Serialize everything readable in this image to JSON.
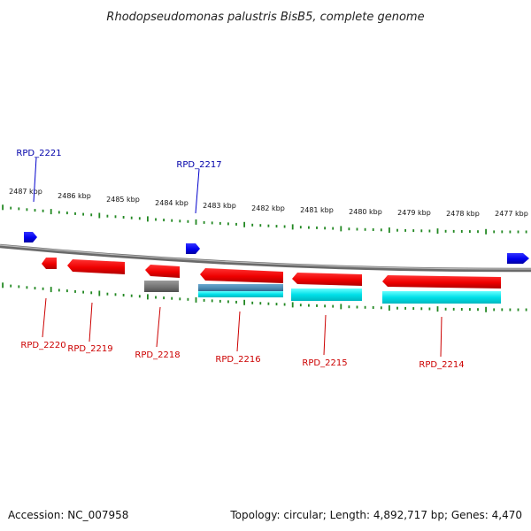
{
  "title": "Rhodopseudomonas palustris BisB5, complete genome",
  "footer": {
    "accession": "Accession: NC_007958",
    "summary": "Topology: circular; Length: 4,892,717 bp; Genes: 4,470"
  },
  "colors": {
    "forward_gene": "#0000ee",
    "reverse_gene": "#ee0000",
    "tick": "#228822",
    "backbone": "#8a8a8a",
    "cds_cyan": "#00e0e8",
    "cds_steel": "#4a88b0",
    "cds_gray": "#707070",
    "forward_label": "#0000aa",
    "reverse_label": "#cc0000"
  },
  "kbp_labels": [
    "2487 kbp",
    "2486 kbp",
    "2485 kbp",
    "2484 kbp",
    "2483 kbp",
    "2482 kbp",
    "2481 kbp",
    "2480 kbp",
    "2479 kbp",
    "2478 kbp",
    "2477 kbp"
  ],
  "forward_genes": [
    {
      "label": "RPD_2221",
      "has_label": true
    },
    {
      "label": "RPD_2217",
      "has_label": true
    },
    {
      "label": "",
      "has_label": false
    }
  ],
  "reverse_genes": [
    {
      "label": "RPD_2220",
      "sub": "none"
    },
    {
      "label": "RPD_2219",
      "sub": "none"
    },
    {
      "label": "RPD_2218",
      "sub": "gray"
    },
    {
      "label": "RPD_2216",
      "sub": "steel"
    },
    {
      "label": "RPD_2215",
      "sub": "cyan"
    },
    {
      "label": "RPD_2214",
      "sub": "cyan"
    }
  ]
}
